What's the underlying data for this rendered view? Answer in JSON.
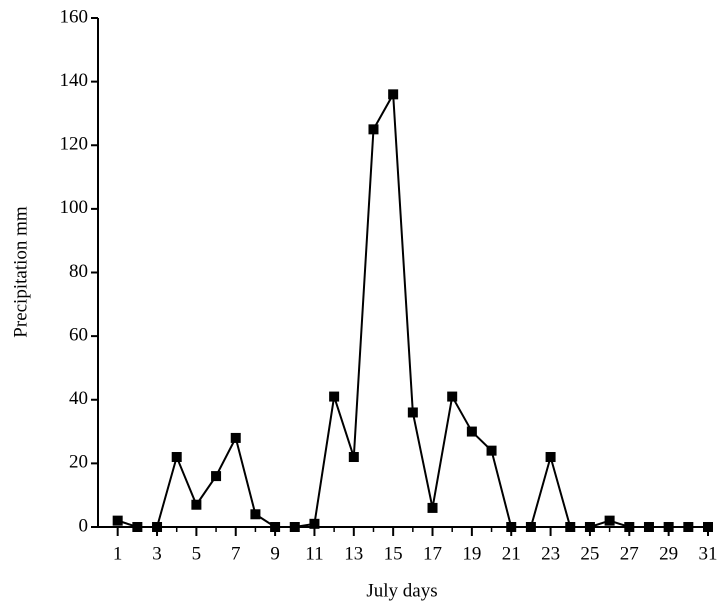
{
  "chart_data": {
    "type": "line",
    "x_label": "July days",
    "y_label": "Precipitation mm",
    "x": [
      1,
      2,
      3,
      4,
      5,
      6,
      7,
      8,
      9,
      10,
      11,
      12,
      13,
      14,
      15,
      16,
      17,
      18,
      19,
      20,
      21,
      22,
      23,
      24,
      25,
      26,
      27,
      28,
      29,
      30,
      31
    ],
    "series": [
      {
        "color": "#000000",
        "values": [
          2,
          0,
          0,
          22,
          7,
          16,
          28,
          4,
          0,
          0,
          1,
          41,
          22,
          125,
          136,
          36,
          6,
          41,
          30,
          24,
          0,
          0,
          22,
          0,
          0,
          2,
          0,
          0,
          0,
          0,
          0
        ]
      }
    ],
    "xlim": [
      0,
      31
    ],
    "xticks": [
      1,
      3,
      5,
      7,
      9,
      11,
      13,
      15,
      17,
      19,
      21,
      23,
      25,
      27,
      29,
      31
    ],
    "xminorticks": [
      2,
      4,
      6,
      8,
      10,
      12,
      14,
      16,
      18,
      20,
      22,
      24,
      26,
      28,
      30
    ],
    "ylim": [
      0,
      160
    ],
    "yticks": [
      0,
      20,
      40,
      60,
      80,
      100,
      120,
      140,
      160
    ],
    "marker": "square"
  }
}
